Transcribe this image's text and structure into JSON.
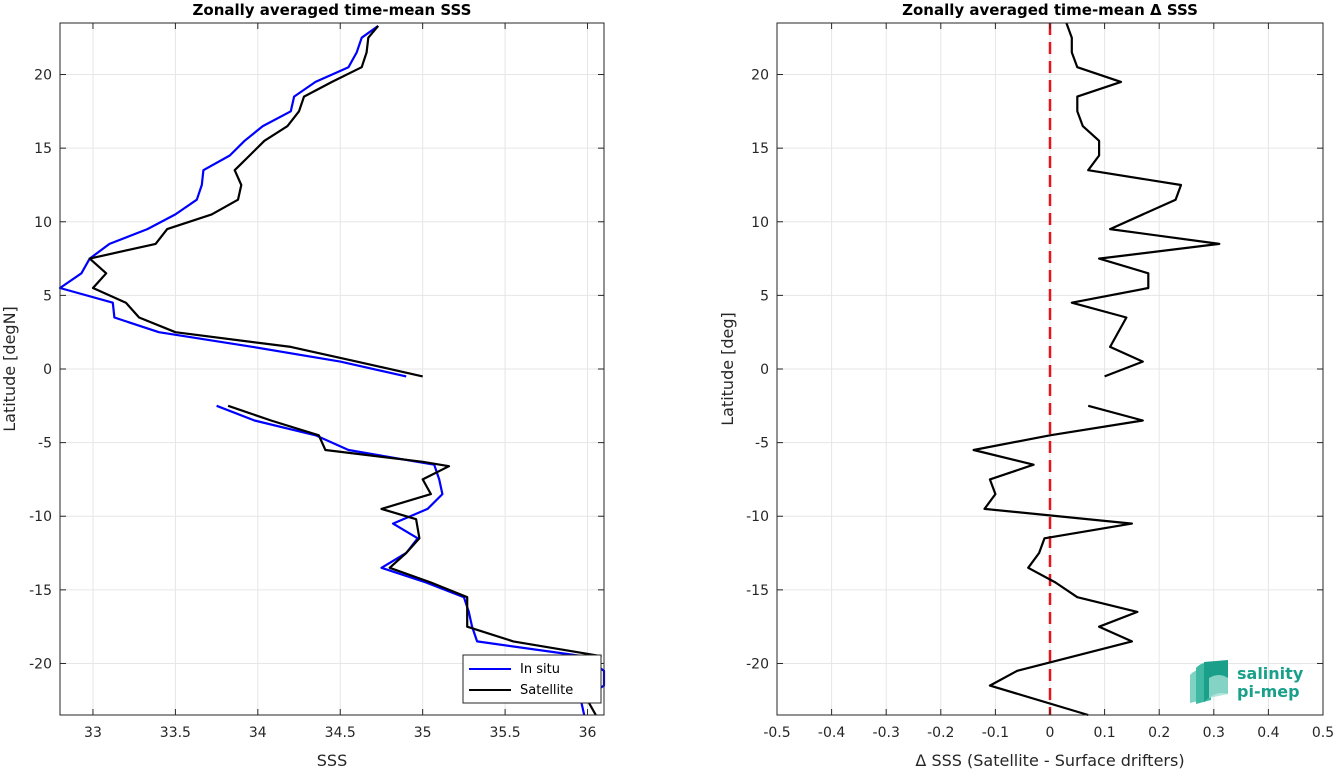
{
  "chart_data": [
    {
      "type": "line",
      "title": "Zonally averaged time-mean SSS",
      "xlabel": "SSS",
      "ylabel": "Latitude [degN]",
      "xlim": [
        32.8,
        36.1
      ],
      "ylim": [
        -23.5,
        23.5
      ],
      "xticks": [
        33,
        33.5,
        34,
        34.5,
        35,
        35.5,
        36
      ],
      "xtick_labels": [
        "33",
        "33.5",
        "34",
        "34.5",
        "35",
        "35.5",
        "36"
      ],
      "yticks": [
        -20,
        -15,
        -10,
        -5,
        0,
        5,
        10,
        15,
        20
      ],
      "ytick_labels": [
        "-20",
        "-15",
        "-10",
        "-5",
        "0",
        "5",
        "10",
        "15",
        "20"
      ],
      "grid": true,
      "legend_position": "bottom-right",
      "series": [
        {
          "name": "In situ",
          "color": "#0000ff",
          "segments": [
            [
              [
                34.73,
                23.3
              ],
              [
                34.63,
                22.5
              ],
              [
                34.6,
                21.5
              ],
              [
                34.55,
                20.5
              ],
              [
                34.35,
                19.5
              ],
              [
                34.22,
                18.5
              ],
              [
                34.2,
                17.5
              ],
              [
                34.03,
                16.5
              ],
              [
                33.92,
                15.5
              ],
              [
                33.83,
                14.5
              ],
              [
                33.67,
                13.5
              ],
              [
                33.66,
                12.5
              ],
              [
                33.63,
                11.5
              ],
              [
                33.5,
                10.5
              ],
              [
                33.33,
                9.5
              ],
              [
                33.1,
                8.5
              ],
              [
                32.98,
                7.5
              ],
              [
                32.93,
                6.5
              ],
              [
                32.8,
                5.5
              ],
              [
                33.12,
                4.5
              ],
              [
                33.13,
                3.5
              ],
              [
                33.4,
                2.5
              ],
              [
                33.97,
                1.5
              ],
              [
                34.5,
                0.5
              ],
              [
                34.9,
                -0.5
              ]
            ],
            [
              [
                33.75,
                -2.5
              ],
              [
                33.98,
                -3.5
              ],
              [
                34.35,
                -4.5
              ],
              [
                34.55,
                -5.5
              ],
              [
                35.07,
                -6.5
              ],
              [
                35.1,
                -7.5
              ],
              [
                35.12,
                -8.5
              ],
              [
                35.03,
                -9.5
              ],
              [
                34.82,
                -10.5
              ],
              [
                34.97,
                -11.5
              ],
              [
                34.9,
                -12.5
              ],
              [
                34.75,
                -13.5
              ],
              [
                35.02,
                -14.5
              ],
              [
                35.25,
                -15.5
              ],
              [
                35.28,
                -16.5
              ],
              [
                35.3,
                -17.5
              ],
              [
                35.33,
                -18.5
              ],
              [
                35.97,
                -19.5
              ],
              [
                36.1,
                -20.5
              ],
              [
                36.1,
                -21.5
              ],
              [
                35.96,
                -22.5
              ],
              [
                35.98,
                -23.5
              ]
            ]
          ]
        },
        {
          "name": "Satellite",
          "color": "#000000",
          "segments": [
            [
              [
                34.73,
                23.3
              ],
              [
                34.67,
                22.5
              ],
              [
                34.66,
                21.5
              ],
              [
                34.63,
                20.5
              ],
              [
                34.45,
                19.5
              ],
              [
                34.28,
                18.5
              ],
              [
                34.25,
                17.5
              ],
              [
                34.18,
                16.5
              ],
              [
                34.04,
                15.5
              ],
              [
                33.95,
                14.5
              ],
              [
                33.86,
                13.5
              ],
              [
                33.9,
                12.5
              ],
              [
                33.88,
                11.5
              ],
              [
                33.72,
                10.5
              ],
              [
                33.45,
                9.5
              ],
              [
                33.38,
                8.5
              ],
              [
                32.98,
                7.5
              ],
              [
                33.08,
                6.5
              ],
              [
                33.0,
                5.5
              ],
              [
                33.2,
                4.5
              ],
              [
                33.28,
                3.5
              ],
              [
                33.5,
                2.5
              ],
              [
                34.2,
                1.5
              ],
              [
                34.6,
                0.5
              ],
              [
                35.0,
                -0.5
              ]
            ],
            [
              [
                33.82,
                -2.5
              ],
              [
                34.08,
                -3.5
              ],
              [
                34.37,
                -4.5
              ],
              [
                34.41,
                -5.5
              ],
              [
                35.0,
                -6.3
              ],
              [
                35.16,
                -6.6
              ],
              [
                35.0,
                -7.5
              ],
              [
                35.05,
                -8.5
              ],
              [
                34.75,
                -9.5
              ],
              [
                34.96,
                -10.2
              ],
              [
                34.98,
                -11.5
              ],
              [
                34.9,
                -12.5
              ],
              [
                34.8,
                -13.5
              ],
              [
                35.05,
                -14.5
              ],
              [
                35.27,
                -15.5
              ],
              [
                35.27,
                -16.5
              ],
              [
                35.27,
                -17.5
              ],
              [
                35.55,
                -18.5
              ],
              [
                36.08,
                -19.5
              ],
              [
                36.0,
                -20.5
              ],
              [
                36.05,
                -21.5
              ],
              [
                36.0,
                -22.5
              ],
              [
                36.05,
                -23.5
              ]
            ]
          ]
        }
      ]
    },
    {
      "type": "line",
      "title": "Zonally averaged time-mean Δ SSS",
      "xlabel": "Δ SSS (Satellite - Surface drifters)",
      "ylabel": "Latitude [deg]",
      "xlim": [
        -0.5,
        0.5
      ],
      "ylim": [
        -23.5,
        23.5
      ],
      "xticks": [
        -0.5,
        -0.4,
        -0.3,
        -0.2,
        -0.1,
        0,
        0.1,
        0.2,
        0.3,
        0.4,
        0.5
      ],
      "xtick_labels": [
        "-0.5",
        "-0.4",
        "-0.3",
        "-0.2",
        "-0.1",
        "0",
        "0.1",
        "0.2",
        "0.3",
        "0.4",
        "0.5"
      ],
      "yticks": [
        -20,
        -15,
        -10,
        -5,
        0,
        5,
        10,
        15,
        20
      ],
      "ytick_labels": [
        "-20",
        "-15",
        "-10",
        "-5",
        "0",
        "5",
        "10",
        "15",
        "20"
      ],
      "grid": true,
      "reference_line": {
        "x": 0,
        "color": "#e6151c",
        "style": "dashed"
      },
      "series": [
        {
          "color": "#000000",
          "segments": [
            [
              [
                0.03,
                23.5
              ],
              [
                0.04,
                22.5
              ],
              [
                0.04,
                21.5
              ],
              [
                0.05,
                20.5
              ],
              [
                0.13,
                19.5
              ],
              [
                0.05,
                18.5
              ],
              [
                0.05,
                17.5
              ],
              [
                0.06,
                16.5
              ],
              [
                0.09,
                15.5
              ],
              [
                0.09,
                14.5
              ],
              [
                0.07,
                13.5
              ],
              [
                0.24,
                12.5
              ],
              [
                0.23,
                11.5
              ],
              [
                0.11,
                9.5
              ],
              [
                0.31,
                8.5
              ],
              [
                0.09,
                7.5
              ],
              [
                0.18,
                6.5
              ],
              [
                0.18,
                5.5
              ],
              [
                0.04,
                4.5
              ],
              [
                0.14,
                3.5
              ],
              [
                0.11,
                1.5
              ],
              [
                0.17,
                0.5
              ],
              [
                0.1,
                -0.5
              ]
            ],
            [
              [
                0.07,
                -2.5
              ],
              [
                0.17,
                -3.5
              ],
              [
                0.0,
                -4.5
              ],
              [
                -0.14,
                -5.5
              ],
              [
                -0.03,
                -6.5
              ],
              [
                -0.11,
                -7.5
              ],
              [
                -0.1,
                -8.5
              ],
              [
                -0.12,
                -9.5
              ],
              [
                0.15,
                -10.5
              ],
              [
                -0.01,
                -11.5
              ],
              [
                -0.02,
                -12.5
              ],
              [
                -0.04,
                -13.5
              ],
              [
                0.01,
                -14.5
              ],
              [
                0.05,
                -15.5
              ],
              [
                0.16,
                -16.5
              ],
              [
                0.09,
                -17.5
              ],
              [
                0.15,
                -18.5
              ],
              [
                -0.06,
                -20.5
              ],
              [
                -0.11,
                -21.5
              ],
              [
                0.07,
                -23.5
              ]
            ]
          ]
        }
      ]
    }
  ],
  "logo": {
    "line1": "salinity",
    "line2": "pi-mep",
    "color": "#1aa08a"
  }
}
